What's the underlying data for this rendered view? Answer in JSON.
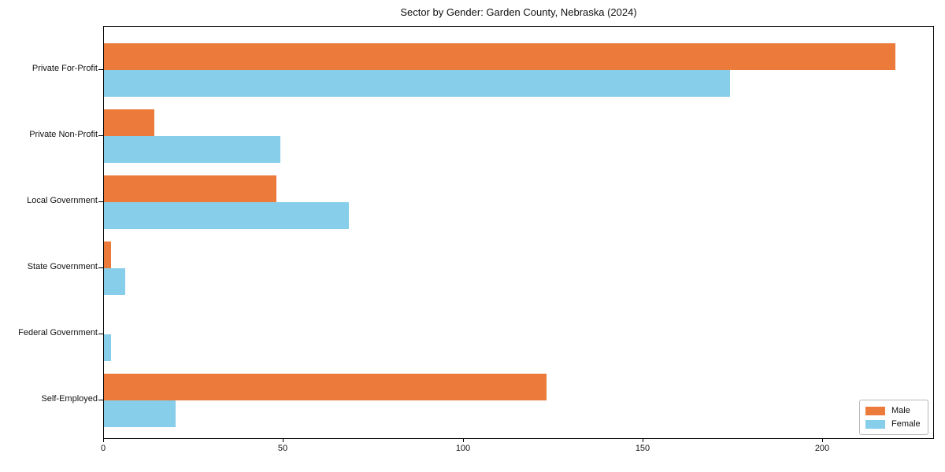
{
  "title": "Sector by Gender: Garden County, Nebraska (2024)",
  "chart_data": {
    "type": "bar",
    "orientation": "horizontal",
    "title": "Sector by Gender: Garden County, Nebraska (2024)",
    "categories": [
      "Private For-Profit",
      "Private Non-Profit",
      "Local Government",
      "State Government",
      "Federal Government",
      "Self-Employed"
    ],
    "series": [
      {
        "name": "Male",
        "color": "#EB7A3B",
        "values": [
          220,
          14,
          48,
          2,
          0,
          123
        ]
      },
      {
        "name": "Female",
        "color": "#87CEEB",
        "values": [
          174,
          49,
          68,
          6,
          2,
          20
        ]
      }
    ],
    "xlabel": "",
    "ylabel": "",
    "x_ticks": [
      0,
      50,
      100,
      150,
      200
    ],
    "xlim": [
      0,
      231
    ],
    "grid": false,
    "legend_position": "lower right",
    "background_color": "#ffffff",
    "axis_color": "#000000"
  }
}
